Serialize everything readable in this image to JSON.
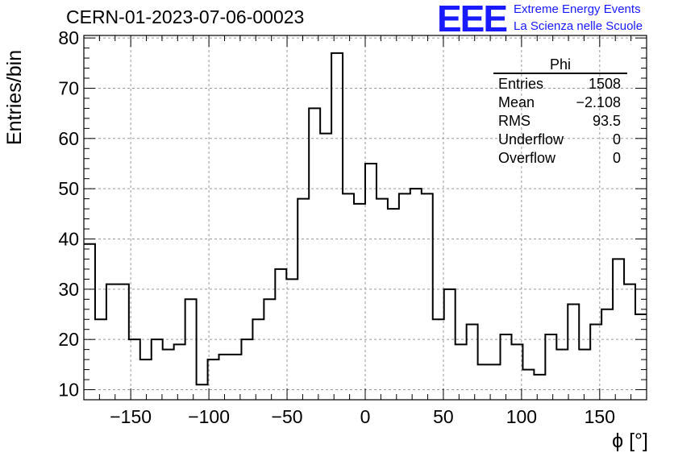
{
  "header": {
    "title": "CERN-01-2023-07-06-00023",
    "logo": "EEE",
    "brand_line1": "Extreme Energy Events",
    "brand_line2": "La Scienza nelle Scuole"
  },
  "stats": {
    "title": "Phi",
    "rows": [
      {
        "label": "Entries",
        "value": "1508"
      },
      {
        "label": "Mean",
        "value": "−2.108"
      },
      {
        "label": "RMS",
        "value": "93.5"
      },
      {
        "label": "Underflow",
        "value": "0"
      },
      {
        "label": "Overflow",
        "value": "0"
      }
    ]
  },
  "chart_data": {
    "type": "histogram",
    "title": "CERN-01-2023-07-06-00023",
    "xlabel": "ϕ [°]",
    "ylabel": "Entries/bin",
    "xlim": [
      -180,
      180
    ],
    "ylim": [
      8,
      80.5
    ],
    "bin_width": 7.2,
    "xticks": [
      -150,
      -100,
      -50,
      0,
      50,
      100,
      150
    ],
    "xtick_labels": [
      "−150",
      "−100",
      "−50",
      "0",
      "50",
      "100",
      "150"
    ],
    "yticks": [
      10,
      20,
      30,
      40,
      50,
      60,
      70,
      80
    ],
    "ytick_labels": [
      "10",
      "20",
      "30",
      "40",
      "50",
      "60",
      "70",
      "80"
    ],
    "grid": true,
    "line_color": "#000000",
    "values": [
      39,
      24,
      31,
      31,
      20,
      16,
      20,
      18,
      19,
      28,
      11,
      16,
      17,
      17,
      20,
      24,
      28,
      34,
      32,
      48,
      66,
      61,
      77,
      49,
      47,
      55,
      48,
      46,
      49,
      50,
      49,
      24,
      30,
      19,
      23,
      15,
      15,
      21,
      19,
      14,
      13,
      21,
      18,
      27,
      18,
      23,
      26,
      36,
      31,
      25
    ]
  }
}
